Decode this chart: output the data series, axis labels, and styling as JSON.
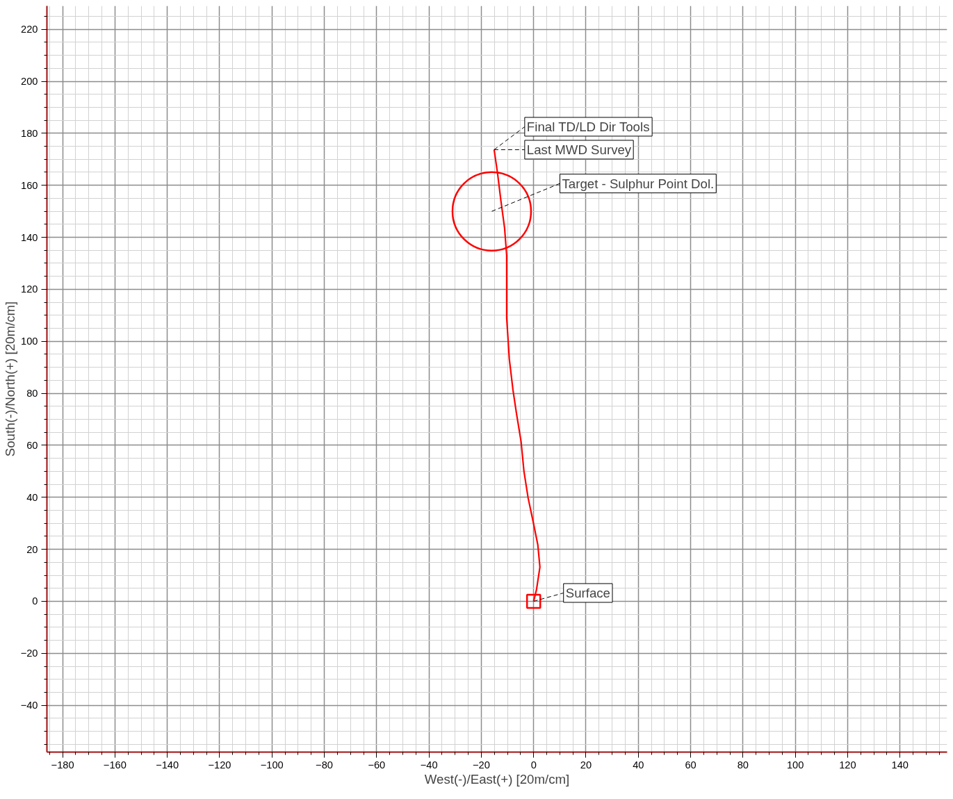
{
  "chart_data": {
    "type": "line",
    "xlabel": "West(-)/East(+) [20m/cm]",
    "ylabel": "South(-)/North(+) [20m/cm]",
    "xlim": [
      -186,
      158
    ],
    "ylim": [
      -58,
      229
    ],
    "xticks": [
      -180,
      -160,
      -140,
      -120,
      -100,
      -80,
      -60,
      -40,
      -20,
      0,
      20,
      40,
      60,
      80,
      100,
      120,
      140
    ],
    "yticks": [
      -40,
      -20,
      0,
      20,
      40,
      60,
      80,
      100,
      120,
      140,
      160,
      180,
      200,
      220
    ],
    "grid": true,
    "series": [
      {
        "color": "#ff0000",
        "marker": "none",
        "x": [
          0,
          1.1,
          2.4,
          1.6,
          0,
          -2.1,
          -3.7,
          -4.8,
          -6.6,
          -7.9,
          -9.3,
          -10.3,
          -10.3,
          -10.3,
          -11.1,
          -12.5,
          -13.8,
          -15.1
        ],
        "values": [
          0,
          4.5,
          13.2,
          21.7,
          29.7,
          39.7,
          50,
          61.4,
          72.5,
          81.3,
          93.2,
          109,
          125,
          133,
          143.5,
          154,
          164.7,
          173.7
        ]
      },
      {
        "type": "scatter",
        "color": "#ff0000",
        "marker": "circle",
        "x": [
          -16
        ],
        "values": [
          150
        ]
      },
      {
        "type": "scatter",
        "color": "#ff0000",
        "marker": "square",
        "x": [
          0
        ],
        "values": [
          0
        ]
      }
    ],
    "annotations": [
      {
        "text": "Final TD/LD Dir Tools",
        "x": -15.1,
        "y": 173.7
      },
      {
        "text": "Last MWD Survey",
        "x": -15.1,
        "y": 173.7
      },
      {
        "text": "Target - Sulphur Point Dol.",
        "x": -16,
        "y": 150
      },
      {
        "text": "Surface",
        "x": 0,
        "y": 0
      }
    ]
  }
}
